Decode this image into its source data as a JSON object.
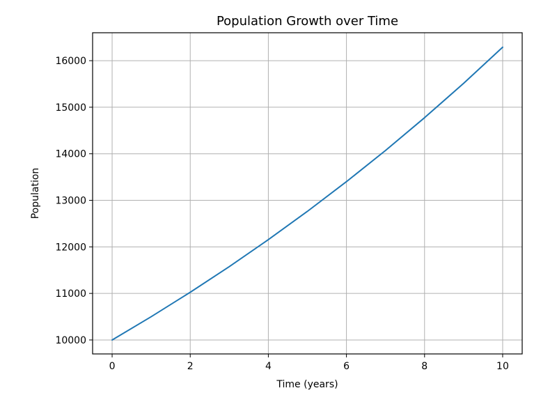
{
  "chart_data": {
    "type": "line",
    "title": "Population Growth over Time",
    "xlabel": "Time (years)",
    "ylabel": "Population",
    "xlim": [
      -0.5,
      10.5
    ],
    "ylim": [
      9700,
      16600
    ],
    "x_ticks": [
      0,
      2,
      4,
      6,
      8,
      10
    ],
    "y_ticks": [
      10000,
      11000,
      12000,
      13000,
      14000,
      15000,
      16000
    ],
    "x_tick_labels": [
      "0",
      "2",
      "4",
      "6",
      "8",
      "10"
    ],
    "y_tick_labels": [
      "10000",
      "11000",
      "12000",
      "13000",
      "14000",
      "15000",
      "16000"
    ],
    "grid": true,
    "series": [
      {
        "color": "#1f77b4",
        "x": [
          0,
          1,
          2,
          3,
          4,
          5,
          6,
          7,
          8,
          9,
          10
        ],
        "values": [
          10000,
          10500,
          11025,
          11576,
          12155,
          12763,
          13401,
          14071,
          14775,
          15513,
          16289
        ]
      }
    ]
  }
}
